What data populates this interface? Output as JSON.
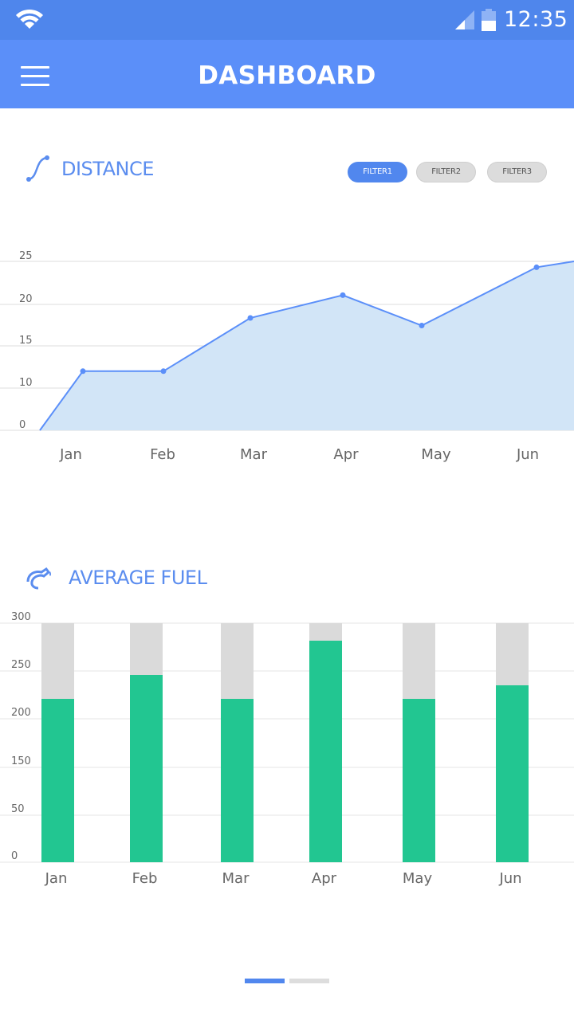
{
  "status_bar": {
    "time": "12:35",
    "icons": [
      "wifi-icon",
      "cellular-signal-icon",
      "battery-icon"
    ]
  },
  "app_bar": {
    "title": "DASHBOARD",
    "menu_icon": "hamburger-menu-icon"
  },
  "distance": {
    "title": "DISTANCE",
    "icon": "route-curve-icon",
    "filters": [
      {
        "label": "FILTER1",
        "active": true
      },
      {
        "label": "FILTER2",
        "active": false
      },
      {
        "label": "FILTER3",
        "active": false
      }
    ]
  },
  "fuel": {
    "title": "AVERAGE FUEL",
    "icon": "fuel-nozzle-icon"
  },
  "pager": {
    "pages": 2,
    "current": 1
  },
  "colors": {
    "status_bar": "#4f86ec",
    "app_bar": "#5b8ff9",
    "accent": "#5b8def",
    "area_fill": "#d2e5f7",
    "bar_value": "#22c691",
    "bar_track": "#dadada",
    "pager_inactive": "#dddddd"
  },
  "chart_data": [
    {
      "type": "area",
      "title": "DISTANCE",
      "categories": [
        "Jan",
        "Feb",
        "Mar",
        "Apr",
        "May",
        "Jun"
      ],
      "y_ticks": [
        "25",
        "20",
        "15",
        "10",
        "0"
      ],
      "series": [
        {
          "values": [
            12,
            12,
            18.3,
            21,
            17.4,
            24.3
          ]
        }
      ],
      "grid": true
    },
    {
      "type": "bar",
      "title": "AVERAGE FUEL",
      "categories": [
        "Jan",
        "Feb",
        "Mar",
        "Apr",
        "May",
        "Jun"
      ],
      "y_ticks": [
        "300",
        "250",
        "200",
        "150",
        "50",
        "0"
      ],
      "series": [
        {
          "values": [
            205,
            235,
            205,
            278,
            205,
            222
          ]
        }
      ],
      "ylim": [
        0,
        300
      ],
      "grid": true
    }
  ]
}
